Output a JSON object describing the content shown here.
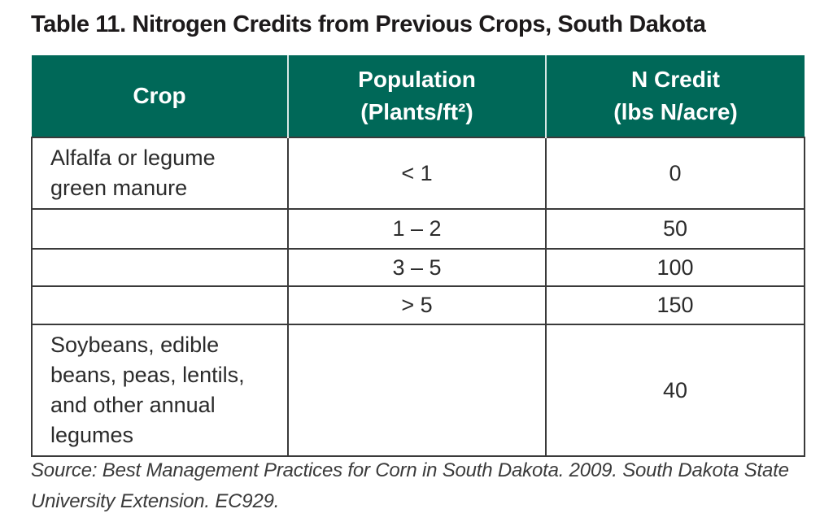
{
  "page": {
    "title": "Table 11. Nitrogen Credits from Previous Crops, South Dakota",
    "background_color": "#ffffff"
  },
  "table": {
    "header_bg_color": "#006858",
    "header_text_color": "#ffffff",
    "border_color": "#3a3a3a",
    "columns": [
      {
        "label_line1": "Crop",
        "label_line2": ""
      },
      {
        "label_line1": "Population",
        "label_line2": "(Plants/ft²)"
      },
      {
        "label_line1": "N Credit",
        "label_line2": "(lbs N/acre)"
      }
    ],
    "rows": [
      {
        "crop": "Alfalfa or legume green manure",
        "population": "< 1",
        "n_credit": "0"
      },
      {
        "crop": "",
        "population": "1 – 2",
        "n_credit": "50"
      },
      {
        "crop": "",
        "population": "3 – 5",
        "n_credit": "100"
      },
      {
        "crop": "",
        "population": "> 5",
        "n_credit": "150"
      },
      {
        "crop": "Soybeans, edible beans, peas, lentils, and other annual legumes",
        "population": "",
        "n_credit": "40"
      }
    ]
  },
  "source": {
    "line1": "Source: Best Management Practices for Corn in South Dakota. 2009. South Dakota State",
    "line2": "University Extension. EC929."
  }
}
